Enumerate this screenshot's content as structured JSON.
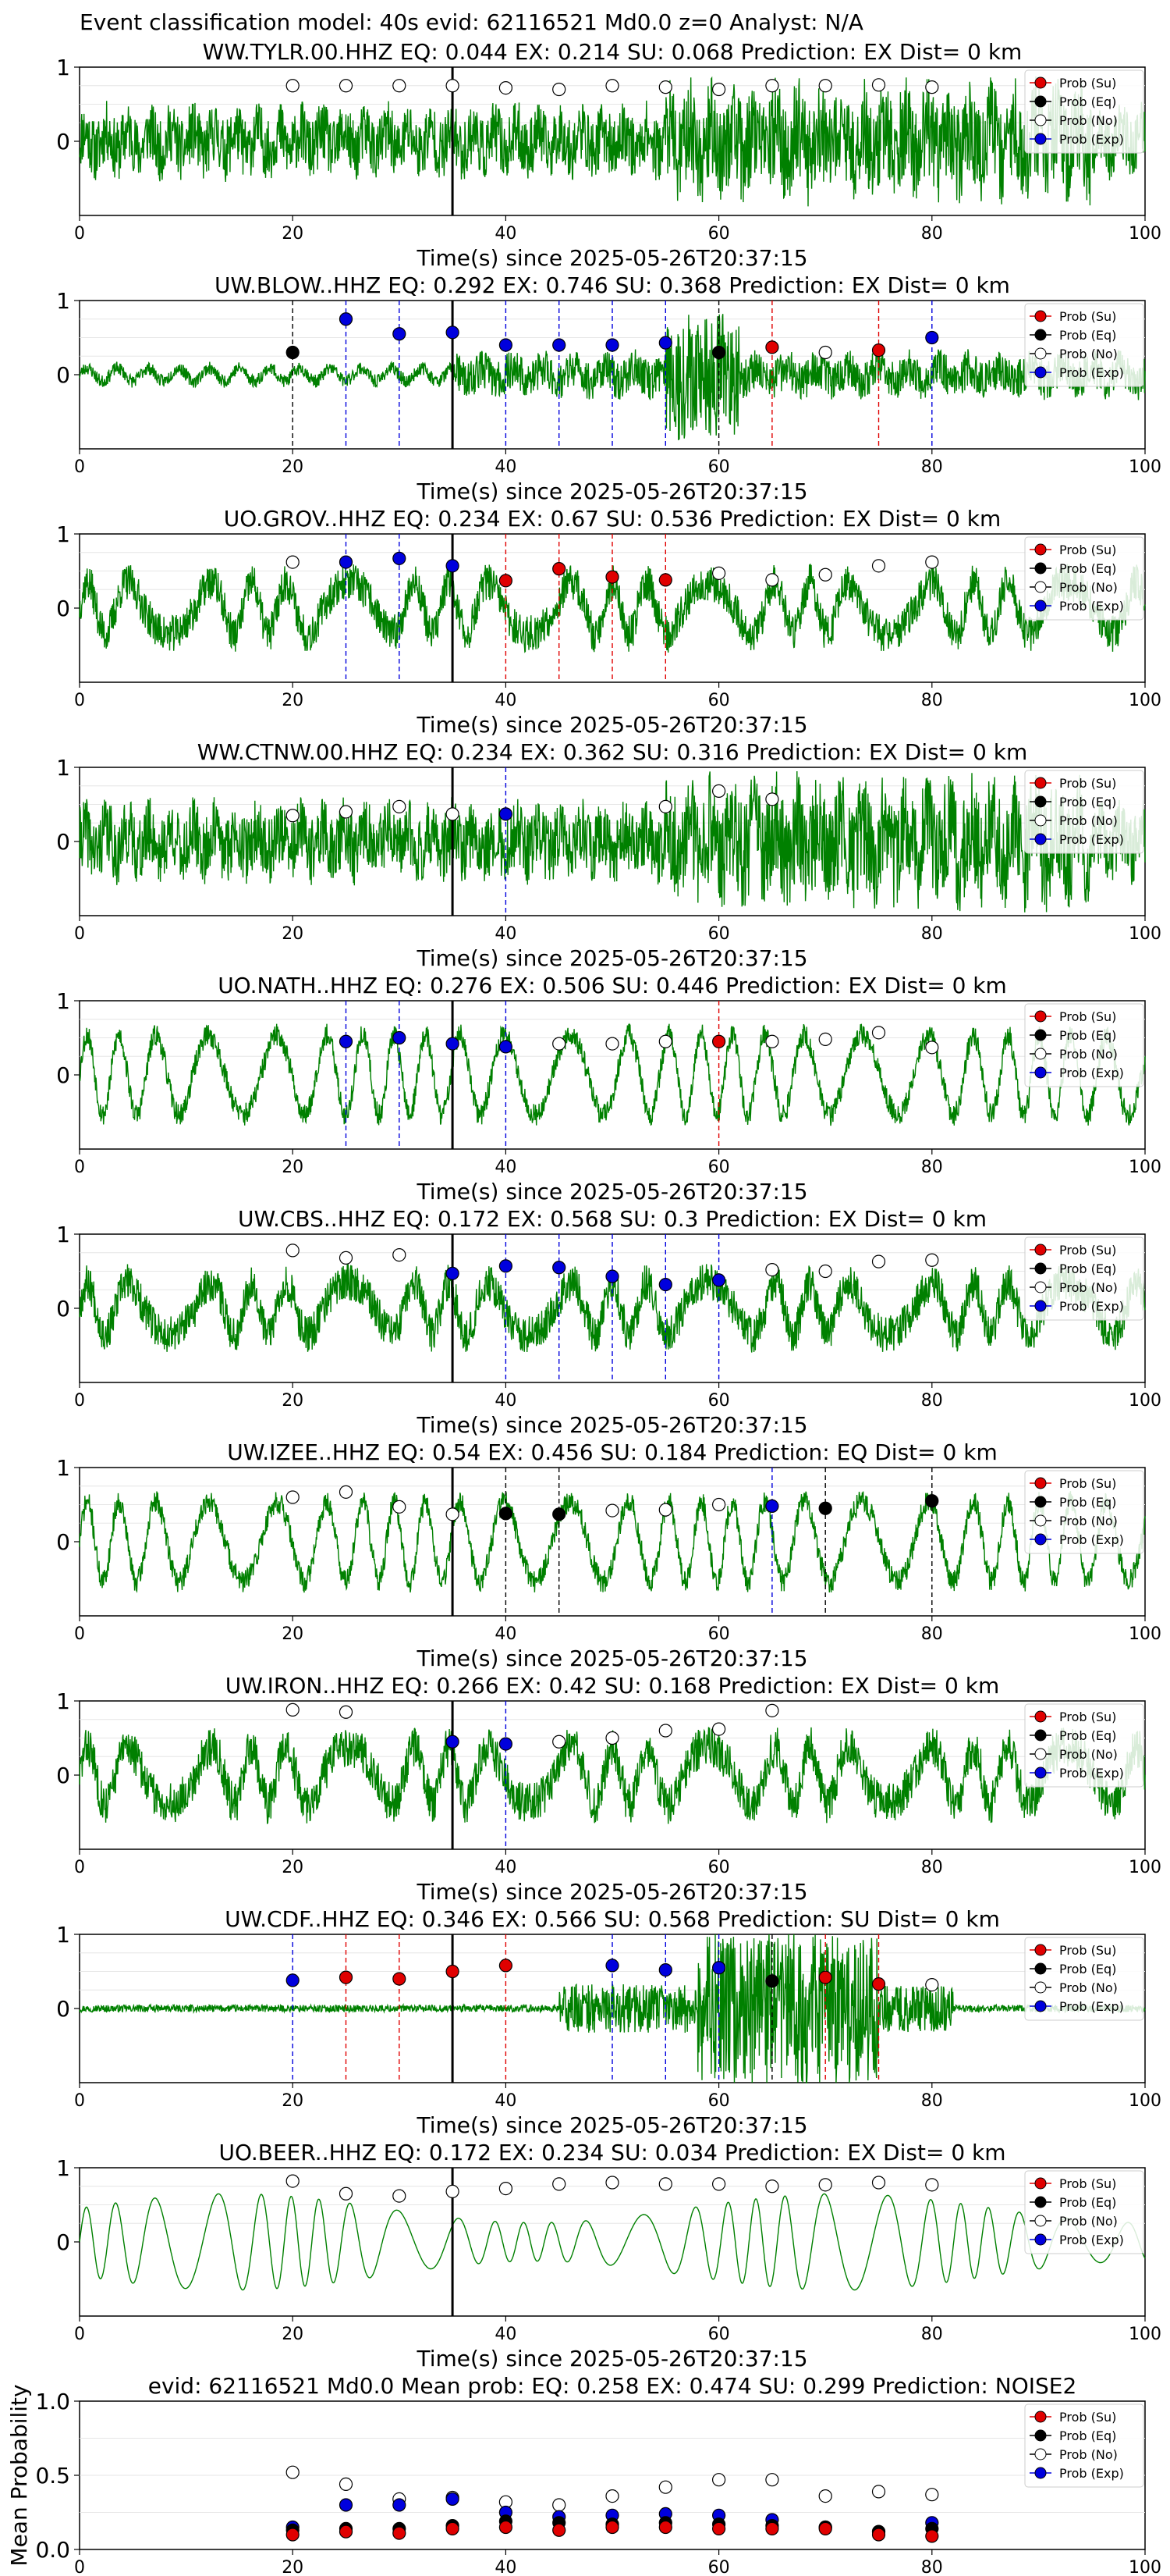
{
  "figure_title": "Event classification model: 40s evid: 62116521 Md0.0 z=0 Analyst: N/A",
  "xlabel": "Time(s) since 2025-05-26T20:37:15",
  "legend": [
    {
      "label": "Prob (Su)",
      "color": "#e00000",
      "key": "su"
    },
    {
      "label": "Prob (Eq)",
      "color": "#000000",
      "key": "eq"
    },
    {
      "label": "Prob (No)",
      "color": "#ffffff",
      "key": "no"
    },
    {
      "label": "Prob (Exp)",
      "color": "#0000dd",
      "key": "exp"
    }
  ],
  "colors": {
    "waveform": "#008000",
    "vline": "#000000",
    "su": "#e00000",
    "exp": "#0000dd",
    "eq": "#000000"
  },
  "chart_data": [
    {
      "type": "scatter",
      "station": "WW.TYLR.00.HHZ",
      "title": "WW.TYLR.00.HHZ   EQ: 0.044  EX: 0.214  SU: 0.068   Prediction: EX    Dist= 0 km",
      "xlim": [
        0,
        100
      ],
      "ylim": [
        -1,
        1
      ],
      "yticks": [
        0,
        1
      ],
      "xticks": [
        0,
        20,
        40,
        60,
        80,
        100
      ],
      "xlabel": "Time(s) since 2025-05-26T20:37:15",
      "event_line": 35,
      "wave": {
        "seed": 11,
        "kind": "noise",
        "amp": 0.55
      },
      "points": [
        [
          20,
          "no",
          0.75
        ],
        [
          25,
          "no",
          0.75
        ],
        [
          30,
          "no",
          0.75
        ],
        [
          35,
          "no",
          0.75
        ],
        [
          40,
          "no",
          0.72
        ],
        [
          45,
          "no",
          0.7
        ],
        [
          50,
          "no",
          0.75
        ],
        [
          55,
          "no",
          0.73
        ],
        [
          60,
          "no",
          0.7
        ],
        [
          65,
          "no",
          0.75
        ],
        [
          70,
          "no",
          0.75
        ],
        [
          75,
          "no",
          0.76
        ],
        [
          80,
          "no",
          0.73
        ]
      ]
    },
    {
      "type": "scatter",
      "station": "UW.BLOW..HHZ",
      "title": "UW.BLOW..HHZ   EQ: 0.292  EX: 0.746  SU: 0.368   Prediction: EX    Dist= 0 km",
      "xlim": [
        0,
        100
      ],
      "ylim": [
        -1,
        1
      ],
      "yticks": [
        0,
        1
      ],
      "xticks": [
        0,
        20,
        40,
        60,
        80,
        100
      ],
      "xlabel": "Time(s) since 2025-05-26T20:37:15",
      "event_line": 35,
      "wave": {
        "seed": 23,
        "kind": "burst",
        "amp": 0.35
      },
      "points": [
        [
          20,
          "eq",
          0.3
        ],
        [
          25,
          "exp",
          0.75
        ],
        [
          30,
          "exp",
          0.55
        ],
        [
          35,
          "exp",
          0.57
        ],
        [
          40,
          "exp",
          0.4
        ],
        [
          45,
          "exp",
          0.4
        ],
        [
          50,
          "exp",
          0.4
        ],
        [
          55,
          "exp",
          0.43
        ],
        [
          60,
          "eq",
          0.3
        ],
        [
          65,
          "su",
          0.37
        ],
        [
          70,
          "no",
          0.3
        ],
        [
          75,
          "su",
          0.33
        ],
        [
          80,
          "exp",
          0.5
        ]
      ]
    },
    {
      "type": "scatter",
      "station": "UO.GROV..HHZ",
      "title": "UO.GROV..HHZ   EQ: 0.234  EX: 0.67  SU: 0.536   Prediction: EX    Dist= 0 km",
      "xlim": [
        0,
        100
      ],
      "ylim": [
        -1,
        1
      ],
      "yticks": [
        0,
        1
      ],
      "xticks": [
        0,
        20,
        40,
        60,
        80,
        100
      ],
      "xlabel": "Time(s) since 2025-05-26T20:37:15",
      "event_line": 35,
      "wave": {
        "seed": 37,
        "kind": "mixed",
        "amp": 0.5
      },
      "points": [
        [
          20,
          "no",
          0.62
        ],
        [
          25,
          "exp",
          0.62
        ],
        [
          30,
          "exp",
          0.67
        ],
        [
          35,
          "exp",
          0.57
        ],
        [
          40,
          "su",
          0.37
        ],
        [
          45,
          "su",
          0.53
        ],
        [
          50,
          "su",
          0.42
        ],
        [
          55,
          "su",
          0.38
        ],
        [
          60,
          "no",
          0.47
        ],
        [
          65,
          "no",
          0.38
        ],
        [
          70,
          "no",
          0.45
        ],
        [
          75,
          "no",
          0.57
        ],
        [
          80,
          "no",
          0.62
        ]
      ]
    },
    {
      "type": "scatter",
      "station": "WW.CTNW.00.HHZ",
      "title": "WW.CTNW.00.HHZ   EQ: 0.234  EX: 0.362  SU: 0.316   Prediction: EX    Dist= 0 km",
      "xlim": [
        0,
        100
      ],
      "ylim": [
        -1,
        1
      ],
      "yticks": [
        0,
        1
      ],
      "xticks": [
        0,
        20,
        40,
        60,
        80,
        100
      ],
      "xlabel": "Time(s) since 2025-05-26T20:37:15",
      "event_line": 35,
      "wave": {
        "seed": 41,
        "kind": "noise",
        "amp": 0.6
      },
      "points": [
        [
          20,
          "no",
          0.35
        ],
        [
          25,
          "no",
          0.4
        ],
        [
          30,
          "no",
          0.47
        ],
        [
          35,
          "no",
          0.37
        ],
        [
          40,
          "exp",
          0.37
        ],
        [
          55,
          "no",
          0.47
        ],
        [
          60,
          "no",
          0.68
        ],
        [
          65,
          "no",
          0.57
        ]
      ]
    },
    {
      "type": "scatter",
      "station": "UO.NATH..HHZ",
      "title": "UO.NATH..HHZ   EQ: 0.276  EX: 0.506  SU: 0.446   Prediction: EX    Dist= 0 km",
      "xlim": [
        0,
        100
      ],
      "ylim": [
        -1,
        1
      ],
      "yticks": [
        0,
        1
      ],
      "xticks": [
        0,
        20,
        40,
        60,
        80,
        100
      ],
      "xlabel": "Time(s) since 2025-05-26T20:37:15",
      "event_line": 35,
      "wave": {
        "seed": 53,
        "kind": "wavy",
        "amp": 0.6
      },
      "points": [
        [
          25,
          "exp",
          0.45
        ],
        [
          30,
          "exp",
          0.5
        ],
        [
          35,
          "exp",
          0.42
        ],
        [
          40,
          "exp",
          0.38
        ],
        [
          45,
          "no",
          0.42
        ],
        [
          50,
          "no",
          0.42
        ],
        [
          55,
          "no",
          0.45
        ],
        [
          60,
          "su",
          0.45
        ],
        [
          65,
          "no",
          0.45
        ],
        [
          70,
          "no",
          0.48
        ],
        [
          75,
          "no",
          0.57
        ],
        [
          80,
          "no",
          0.37
        ]
      ]
    },
    {
      "type": "scatter",
      "station": "UW.CBS..HHZ",
      "title": "UW.CBS..HHZ   EQ: 0.172  EX: 0.568  SU: 0.3   Prediction: EX    Dist= 0 km",
      "xlim": [
        0,
        100
      ],
      "ylim": [
        -1,
        1
      ],
      "yticks": [
        0,
        1
      ],
      "xticks": [
        0,
        20,
        40,
        60,
        80,
        100
      ],
      "xlabel": "Time(s) since 2025-05-26T20:37:15",
      "event_line": 35,
      "wave": {
        "seed": 67,
        "kind": "mixed",
        "amp": 0.5
      },
      "points": [
        [
          20,
          "no",
          0.78
        ],
        [
          25,
          "no",
          0.68
        ],
        [
          30,
          "no",
          0.72
        ],
        [
          35,
          "exp",
          0.47
        ],
        [
          40,
          "exp",
          0.57
        ],
        [
          45,
          "exp",
          0.55
        ],
        [
          50,
          "exp",
          0.43
        ],
        [
          55,
          "exp",
          0.32
        ],
        [
          60,
          "exp",
          0.38
        ],
        [
          65,
          "no",
          0.52
        ],
        [
          70,
          "no",
          0.5
        ],
        [
          75,
          "no",
          0.63
        ],
        [
          80,
          "no",
          0.65
        ]
      ]
    },
    {
      "type": "scatter",
      "station": "UW.IZEE..HHZ",
      "title": "UW.IZEE..HHZ   EQ: 0.54  EX: 0.456  SU: 0.184   Prediction: EQ    Dist= 0 km",
      "xlim": [
        0,
        100
      ],
      "ylim": [
        -1,
        1
      ],
      "yticks": [
        0,
        1
      ],
      "xticks": [
        0,
        20,
        40,
        60,
        80,
        100
      ],
      "xlabel": "Time(s) since 2025-05-26T20:37:15",
      "event_line": 35,
      "wave": {
        "seed": 71,
        "kind": "wavy",
        "amp": 0.6
      },
      "points": [
        [
          20,
          "no",
          0.6
        ],
        [
          25,
          "no",
          0.67
        ],
        [
          30,
          "no",
          0.47
        ],
        [
          35,
          "no",
          0.37
        ],
        [
          40,
          "eq",
          0.38
        ],
        [
          45,
          "eq",
          0.37
        ],
        [
          50,
          "no",
          0.42
        ],
        [
          55,
          "no",
          0.43
        ],
        [
          60,
          "no",
          0.5
        ],
        [
          65,
          "exp",
          0.48
        ],
        [
          70,
          "eq",
          0.45
        ],
        [
          80,
          "eq",
          0.55
        ]
      ]
    },
    {
      "type": "scatter",
      "station": "UW.IRON..HHZ",
      "title": "UW.IRON..HHZ   EQ: 0.266  EX: 0.42  SU: 0.168   Prediction: EX    Dist= 0 km",
      "xlim": [
        0,
        100
      ],
      "ylim": [
        -1,
        1
      ],
      "yticks": [
        0,
        1
      ],
      "xticks": [
        0,
        20,
        40,
        60,
        80,
        100
      ],
      "xlabel": "Time(s) since 2025-05-26T20:37:15",
      "event_line": 35,
      "wave": {
        "seed": 83,
        "kind": "mixed",
        "amp": 0.55
      },
      "points": [
        [
          20,
          "no",
          0.88
        ],
        [
          25,
          "no",
          0.85
        ],
        [
          35,
          "exp",
          0.45
        ],
        [
          40,
          "exp",
          0.42
        ],
        [
          45,
          "no",
          0.45
        ],
        [
          50,
          "no",
          0.5
        ],
        [
          55,
          "no",
          0.6
        ],
        [
          60,
          "no",
          0.62
        ],
        [
          65,
          "no",
          0.87
        ]
      ]
    },
    {
      "type": "scatter",
      "station": "UW.CDF..HHZ",
      "title": "UW.CDF..HHZ   EQ: 0.346  EX: 0.566  SU: 0.568   Prediction: SU    Dist= 0 km",
      "xlim": [
        0,
        100
      ],
      "ylim": [
        -1,
        1
      ],
      "yticks": [
        0,
        1
      ],
      "xticks": [
        0,
        20,
        40,
        60,
        80,
        100
      ],
      "xlabel": "Time(s) since 2025-05-26T20:37:15",
      "event_line": 35,
      "wave": {
        "seed": 97,
        "kind": "quiet",
        "amp": 0.8
      },
      "points": [
        [
          20,
          "exp",
          0.38
        ],
        [
          25,
          "su",
          0.42
        ],
        [
          30,
          "su",
          0.4
        ],
        [
          35,
          "su",
          0.5
        ],
        [
          40,
          "su",
          0.58
        ],
        [
          50,
          "exp",
          0.58
        ],
        [
          55,
          "exp",
          0.52
        ],
        [
          60,
          "exp",
          0.55
        ],
        [
          65,
          "eq",
          0.37
        ],
        [
          70,
          "su",
          0.42
        ],
        [
          75,
          "su",
          0.33
        ],
        [
          80,
          "no",
          0.32
        ]
      ]
    },
    {
      "type": "scatter",
      "station": "UO.BEER..HHZ",
      "title": "UO.BEER..HHZ   EQ: 0.172  EX: 0.234  SU: 0.034   Prediction: EX    Dist= 0 km",
      "xlim": [
        0,
        100
      ],
      "ylim": [
        -1,
        1
      ],
      "yticks": [
        0,
        1
      ],
      "xticks": [
        0,
        20,
        40,
        60,
        80,
        100
      ],
      "xlabel": "Time(s) since 2025-05-26T20:37:15",
      "event_line": 35,
      "wave": {
        "seed": 101,
        "kind": "smooth",
        "amp": 0.65
      },
      "points": [
        [
          20,
          "no",
          0.82
        ],
        [
          25,
          "no",
          0.65
        ],
        [
          30,
          "no",
          0.62
        ],
        [
          35,
          "no",
          0.68
        ],
        [
          40,
          "no",
          0.72
        ],
        [
          45,
          "no",
          0.78
        ],
        [
          50,
          "no",
          0.8
        ],
        [
          55,
          "no",
          0.78
        ],
        [
          60,
          "no",
          0.78
        ],
        [
          65,
          "no",
          0.75
        ],
        [
          70,
          "no",
          0.77
        ],
        [
          75,
          "no",
          0.8
        ],
        [
          80,
          "no",
          0.77
        ]
      ]
    },
    {
      "type": "scatter",
      "station": "mean",
      "title": "evid: 62116521  Md0.0   Mean prob:   EQ: 0.258  EX: 0.474  SU: 0.299   Prediction: NOISE2",
      "xlim": [
        0,
        100
      ],
      "ylim": [
        0,
        1
      ],
      "yticks": [
        0,
        0.5,
        1
      ],
      "ytick_labels": [
        "0.0",
        "0.5",
        "1.0"
      ],
      "xticks": [
        0,
        20,
        40,
        60,
        80,
        100
      ],
      "ylabel": "Mean Probability",
      "xlabel": "",
      "event_line": null,
      "wave": null,
      "series": [
        {
          "name": "Prob (No)",
          "key": "no",
          "x": [
            20,
            25,
            30,
            35,
            40,
            45,
            50,
            55,
            60,
            65,
            70,
            75,
            80
          ],
          "y": [
            0.52,
            0.44,
            0.34,
            0.35,
            0.32,
            0.3,
            0.36,
            0.42,
            0.47,
            0.47,
            0.36,
            0.39,
            0.37
          ]
        },
        {
          "name": "Prob (Exp)",
          "key": "exp",
          "x": [
            20,
            25,
            30,
            35,
            40,
            45,
            50,
            55,
            60,
            65,
            70,
            75,
            80
          ],
          "y": [
            0.15,
            0.3,
            0.3,
            0.34,
            0.25,
            0.22,
            0.23,
            0.24,
            0.23,
            0.2,
            0.15,
            0.12,
            0.18
          ]
        },
        {
          "name": "Prob (Eq)",
          "key": "eq",
          "x": [
            20,
            25,
            30,
            35,
            40,
            45,
            50,
            55,
            60,
            65,
            70,
            75,
            80
          ],
          "y": [
            0.13,
            0.14,
            0.14,
            0.16,
            0.19,
            0.18,
            0.17,
            0.18,
            0.17,
            0.16,
            0.15,
            0.12,
            0.14
          ]
        },
        {
          "name": "Prob (Su)",
          "key": "su",
          "x": [
            20,
            25,
            30,
            35,
            40,
            45,
            50,
            55,
            60,
            65,
            70,
            75,
            80
          ],
          "y": [
            0.1,
            0.12,
            0.11,
            0.14,
            0.15,
            0.13,
            0.15,
            0.15,
            0.14,
            0.14,
            0.14,
            0.1,
            0.09
          ]
        }
      ]
    }
  ]
}
